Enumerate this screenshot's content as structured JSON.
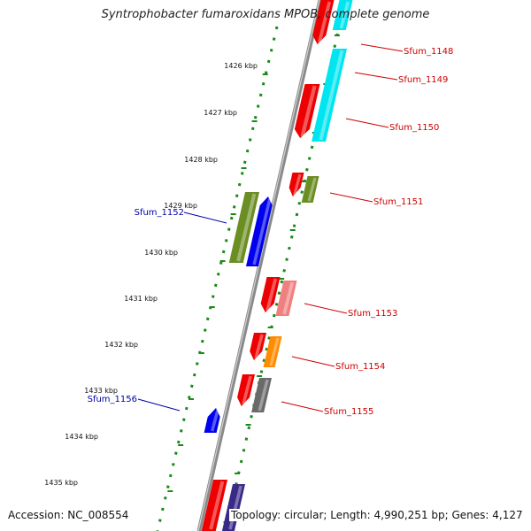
{
  "title": "Syntrophobacter fumaroxidans MPOB, complete genome",
  "footer": {
    "accession": "Accession: NC_008554",
    "topology": "Topology: circular; Length: 4,990,251 bp; Genes: 4,127"
  },
  "colors": {
    "backbone": "#909090",
    "dots": "#1a8a1a",
    "forward_label": "#cc0000",
    "reverse_label": "#0000aa"
  },
  "scale_labels": [
    "1426 kbp",
    "1427 kbp",
    "1428 kbp",
    "1429 kbp",
    "1430 kbp",
    "1431 kbp",
    "1432 kbp",
    "1433 kbp",
    "1434 kbp",
    "1435 kbp"
  ],
  "genes": [
    {
      "label": "Sfum_1148",
      "strand": "forward"
    },
    {
      "label": "Sfum_1149",
      "strand": "forward"
    },
    {
      "label": "Sfum_1150",
      "strand": "forward"
    },
    {
      "label": "Sfum_1151",
      "strand": "forward"
    },
    {
      "label": "Sfum_1152",
      "strand": "reverse"
    },
    {
      "label": "Sfum_1153",
      "strand": "forward"
    },
    {
      "label": "Sfum_1154",
      "strand": "forward"
    },
    {
      "label": "Sfum_1155",
      "strand": "forward"
    },
    {
      "label": "Sfum_1156",
      "strand": "reverse"
    }
  ]
}
